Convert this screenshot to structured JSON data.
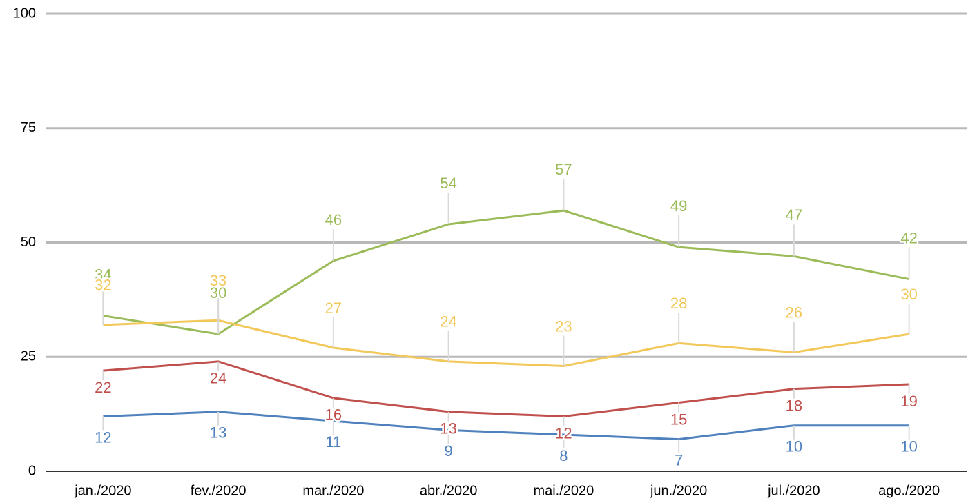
{
  "chart_data": {
    "type": "line",
    "categories": [
      "jan./2020",
      "fev./2020",
      "mar./2020",
      "abr./2020",
      "mai./2020",
      "jun./2020",
      "jul./2020",
      "ago./2020"
    ],
    "series": [
      {
        "color": "#9bbb59",
        "values": [
          34,
          30,
          46,
          54,
          57,
          49,
          47,
          42
        ]
      },
      {
        "color": "#f2c85b",
        "values": [
          32,
          33,
          27,
          24,
          23,
          28,
          26,
          30
        ]
      },
      {
        "color": "#c0504d",
        "values": [
          22,
          24,
          16,
          13,
          12,
          15,
          18,
          19
        ]
      },
      {
        "color": "#4f81bd",
        "values": [
          12,
          13,
          11,
          9,
          8,
          7,
          10,
          10
        ]
      }
    ],
    "ylim": [
      0,
      100
    ],
    "yticks": [
      0,
      25,
      50,
      75,
      100
    ],
    "grid": true
  }
}
